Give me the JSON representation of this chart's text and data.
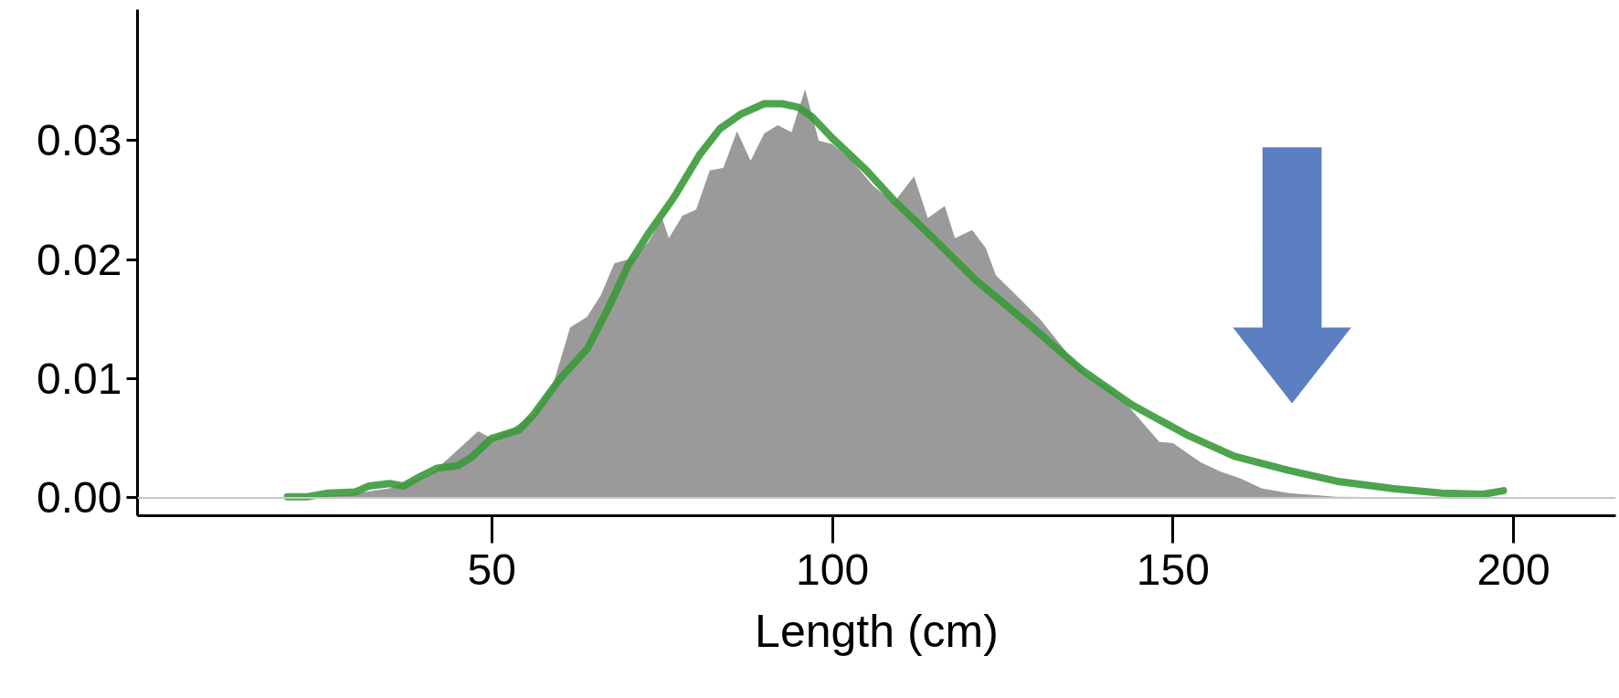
{
  "chart_data": {
    "type": "area",
    "xlabel": "Length (cm)",
    "xlim": [
      -2,
      215
    ],
    "ylim": [
      -0.0015,
      0.041
    ],
    "xticks": [
      50,
      100,
      150,
      200
    ],
    "yticks": [
      {
        "value": 0,
        "label": "0.00"
      },
      {
        "value": 0.01,
        "label": "0.01"
      },
      {
        "value": 0.02,
        "label": "0.02"
      },
      {
        "value": 0.03,
        "label": "0.03"
      }
    ],
    "grid": false,
    "ref_lines": [
      {
        "axis": "y",
        "value": 0,
        "color": "#c8c8c8"
      }
    ],
    "series": [
      {
        "color": "#9a9a9a",
        "x": [
          22.9,
          29,
          35,
          41,
          44,
          48,
          50,
          53,
          56,
          59,
          61.5,
          64,
          66,
          68,
          71,
          73,
          75,
          76,
          78,
          80,
          82,
          84,
          86,
          88,
          90,
          92,
          94,
          96,
          98,
          100,
          103,
          106,
          109,
          112,
          114,
          116.5,
          118,
          120.5,
          122.5,
          124,
          127,
          130.5,
          135,
          138,
          140,
          143,
          148,
          150,
          154,
          157,
          160,
          163,
          167,
          174,
          189.5,
          198.5
        ],
        "values": [
          0,
          0.0003,
          0.0008,
          0.002,
          0.0035,
          0.0056,
          0.005,
          0.0058,
          0.007,
          0.0095,
          0.0143,
          0.0152,
          0.017,
          0.0197,
          0.0202,
          0.0215,
          0.0235,
          0.0218,
          0.0237,
          0.0242,
          0.0275,
          0.0277,
          0.0308,
          0.0283,
          0.0306,
          0.0313,
          0.0307,
          0.0343,
          0.03,
          0.0297,
          0.0282,
          0.0262,
          0.0248,
          0.027,
          0.0235,
          0.0245,
          0.0218,
          0.0225,
          0.021,
          0.0187,
          0.017,
          0.015,
          0.0118,
          0.01,
          0.0095,
          0.008,
          0.0047,
          0.0046,
          0.003,
          0.0022,
          0.0016,
          0.0008,
          0.0004,
          0.0001,
          0,
          0
        ]
      },
      {
        "type": "line",
        "color": "#3a9a3a",
        "x": [
          20,
          23,
          26,
          30,
          32,
          35,
          37,
          39.5,
          42,
          45,
          47,
          50,
          54,
          56,
          60,
          64,
          67,
          70,
          73,
          76.7,
          80.5,
          83.5,
          86.5,
          90,
          92.6,
          95,
          97,
          100,
          105,
          109,
          115,
          121,
          129,
          136.5,
          144,
          152,
          159,
          167,
          174,
          182,
          189.5,
          195.5,
          198.5
        ],
        "values": [
          0.0001,
          0.0001,
          0.0004,
          0.0005,
          0.001,
          0.0012,
          0.001,
          0.0018,
          0.0025,
          0.0027,
          0.0034,
          0.005,
          0.0057,
          0.0069,
          0.01,
          0.0125,
          0.0158,
          0.0195,
          0.0222,
          0.0252,
          0.0288,
          0.031,
          0.0322,
          0.0331,
          0.0331,
          0.0328,
          0.032,
          0.0302,
          0.0275,
          0.025,
          0.0217,
          0.0183,
          0.0145,
          0.0108,
          0.0078,
          0.0053,
          0.0035,
          0.0023,
          0.0014,
          0.0008,
          0.0004,
          0.0003,
          0.0006
        ]
      }
    ]
  }
}
